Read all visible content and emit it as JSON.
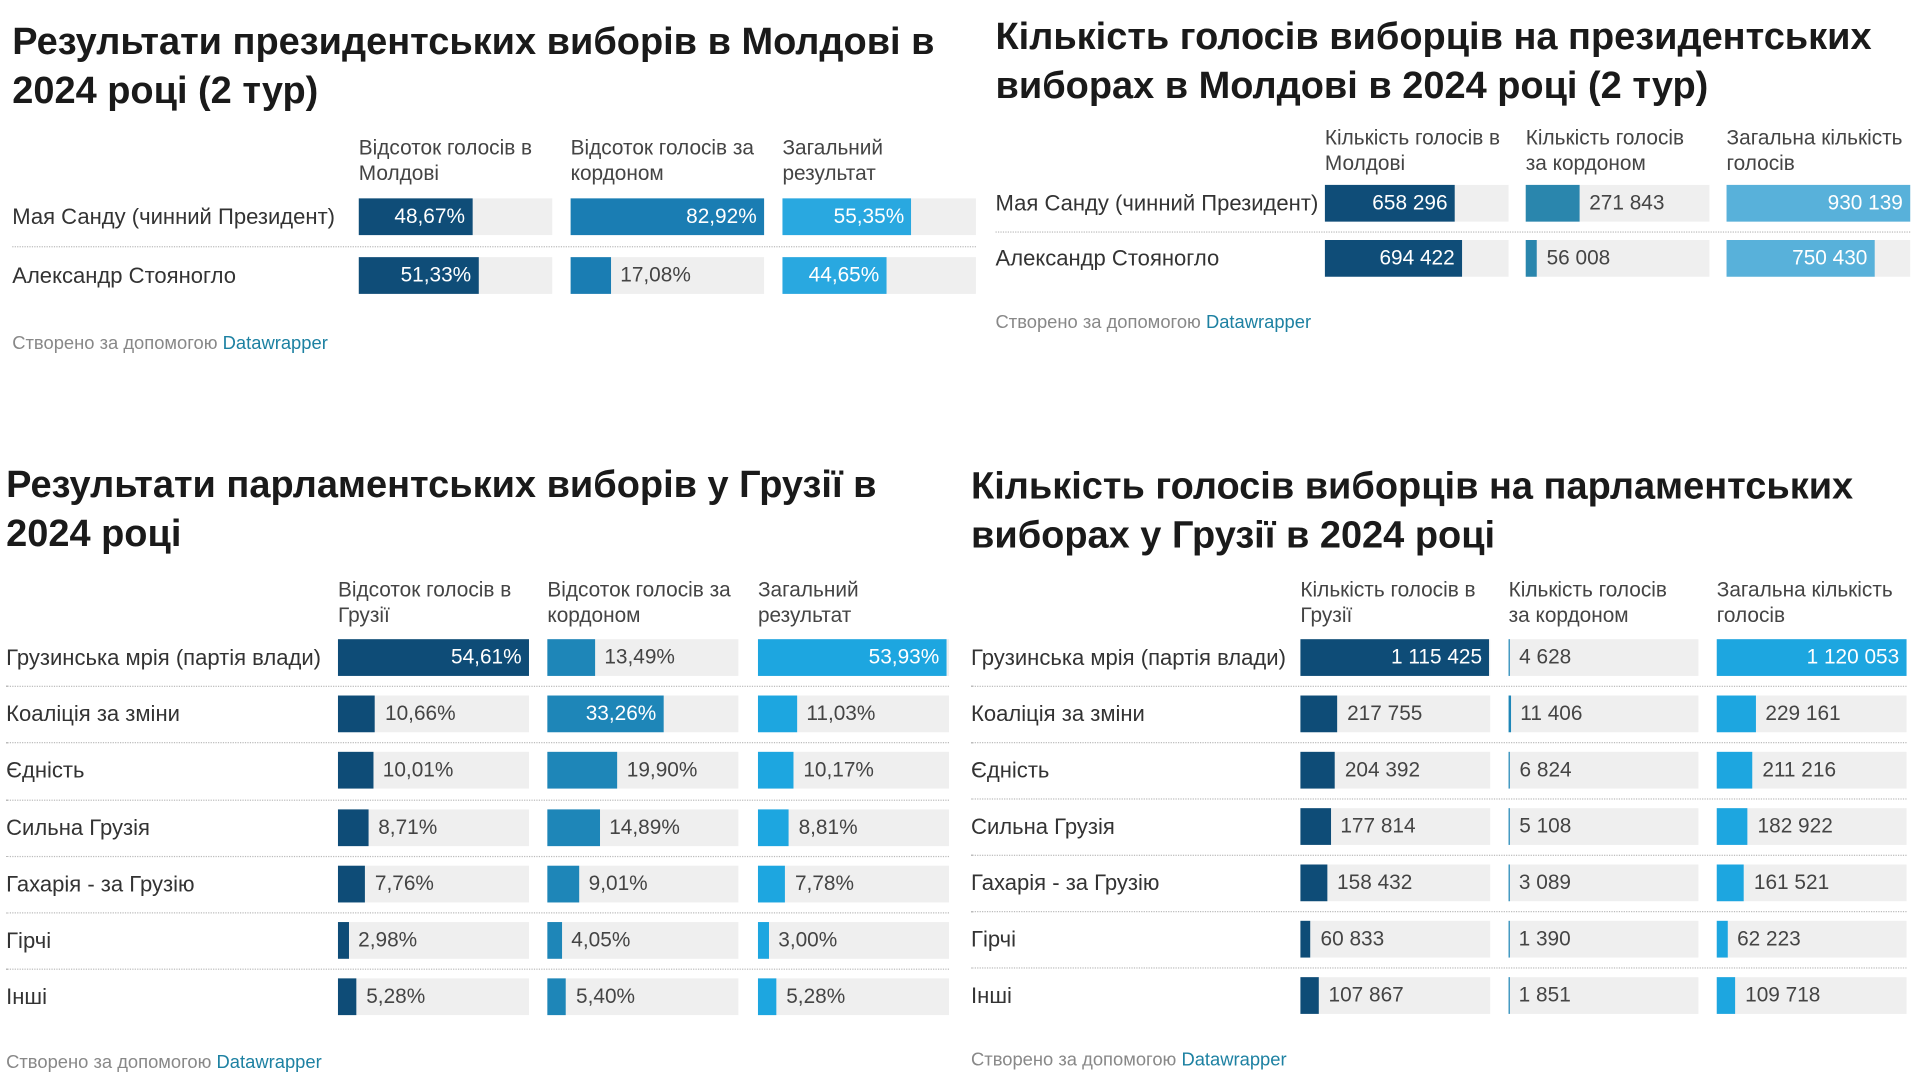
{
  "chart_data": [
    {
      "type": "table-bars",
      "title": "Результати президентських виборів в Молдові в 2024 році (2 тур)",
      "categories": [
        "Мая Санду (чинний Президент)",
        "Александр Стояногло"
      ],
      "series": [
        {
          "name": "Відсоток голосів в Молдові",
          "color": "#0f4d78",
          "values": [
            48.67,
            51.33
          ],
          "value_labels": [
            "48,67%",
            "51,33%"
          ]
        },
        {
          "name": "Відсоток голосів за кордоном",
          "color": "#1a7db3",
          "values": [
            82.92,
            17.08
          ],
          "value_labels": [
            "82,92%",
            "17,08%"
          ]
        },
        {
          "name": "Загальний результат",
          "color": "#29a8e0",
          "values": [
            55.35,
            44.65
          ],
          "value_labels": [
            "55,35%",
            "44,65%"
          ]
        }
      ],
      "xlim": [
        0,
        82.92
      ],
      "footer": "Створено за допомогою",
      "footer_link": "Datawrapper"
    },
    {
      "type": "table-bars",
      "title": "Кількість голосів виборців на президентських виборах в Молдові в 2024 році (2 тур)",
      "categories": [
        "Мая Санду (чинний Президент)",
        "Александр Стояногло"
      ],
      "series": [
        {
          "name": "Кількість голосів в Молдові",
          "color": "#0f4d78",
          "values": [
            658296,
            694422
          ],
          "value_labels": [
            "658 296",
            "694 422"
          ]
        },
        {
          "name": "Кількість голосів за кордоном",
          "color": "#2a86ad",
          "values": [
            271843,
            56008
          ],
          "value_labels": [
            "271 843",
            "56 008"
          ]
        },
        {
          "name": "Загальна кількість голосів",
          "color": "#58b1da",
          "values": [
            930139,
            750430
          ],
          "value_labels": [
            "930 139",
            "750 430"
          ]
        }
      ],
      "xlim": [
        0,
        930139
      ],
      "footer": "Створено за допомогою",
      "footer_link": "Datawrapper"
    },
    {
      "type": "table-bars",
      "title": "Результати парламентських виборів у Грузії в 2024 році",
      "categories": [
        "Грузинська мрія (партія влади)",
        "Коаліція за зміни",
        "Єдність",
        "Сильна Грузія",
        "Гахарія - за Грузію",
        "Гірчі",
        "Інші"
      ],
      "series": [
        {
          "name": "Відсоток голосів в Грузії",
          "color": "#0e4c77",
          "values": [
            54.61,
            10.66,
            10.01,
            8.71,
            7.76,
            2.98,
            5.28
          ],
          "value_labels": [
            "54,61%",
            "10,66%",
            "10,01%",
            "8,71%",
            "7,76%",
            "2,98%",
            "5,28%"
          ]
        },
        {
          "name": "Відсоток голосів за кордоном",
          "color": "#1e86b8",
          "values": [
            13.49,
            33.26,
            19.9,
            14.89,
            9.01,
            4.05,
            5.4
          ],
          "value_labels": [
            "13,49%",
            "33,26%",
            "19,90%",
            "14,89%",
            "9,01%",
            "4,05%",
            "5,40%"
          ]
        },
        {
          "name": "Загальний результат",
          "color": "#1da6e0",
          "values": [
            53.93,
            11.03,
            10.17,
            8.81,
            7.78,
            3.0,
            5.28
          ],
          "value_labels": [
            "53,93%",
            "11,03%",
            "10,17%",
            "8,81%",
            "7,78%",
            "3,00%",
            "5,28%"
          ]
        }
      ],
      "xlim": [
        0,
        54.61
      ],
      "footer": "Створено за допомогою",
      "footer_link": "Datawrapper"
    },
    {
      "type": "table-bars",
      "title": "Кількість голосів виборців на парламентських виборах у Грузії в 2024 році",
      "categories": [
        "Грузинська мрія (партія влади)",
        "Коаліція за зміни",
        "Єдність",
        "Сильна Грузія",
        "Гахарія - за Грузію",
        "Гірчі",
        "Інші"
      ],
      "series": [
        {
          "name": "Кількість голосів в Грузії",
          "color": "#0e4c77",
          "values": [
            1115425,
            217755,
            204392,
            177814,
            158432,
            60833,
            107867
          ],
          "value_labels": [
            "1 115 425",
            "217 755",
            "204 392",
            "177 814",
            "158 432",
            "60 833",
            "107 867"
          ]
        },
        {
          "name": "Кількість голосів за кордоном",
          "color": "#1e86b8",
          "values": [
            4628,
            11406,
            6824,
            5108,
            3089,
            1390,
            1851
          ],
          "value_labels": [
            "4 628",
            "11 406",
            "6 824",
            "5 108",
            "3 089",
            "1 390",
            "1 851"
          ]
        },
        {
          "name": "Загальна кількість голосів",
          "color": "#1da6e0",
          "values": [
            1120053,
            229161,
            211216,
            182922,
            161521,
            62223,
            109718
          ],
          "value_labels": [
            "1 120 053",
            "229 161",
            "211 216",
            "182 922",
            "161 521",
            "62 223",
            "109 718"
          ]
        }
      ],
      "xlim": [
        0,
        1120053
      ],
      "footer": "Створено за допомогою",
      "footer_link": "Datawrapper"
    }
  ]
}
